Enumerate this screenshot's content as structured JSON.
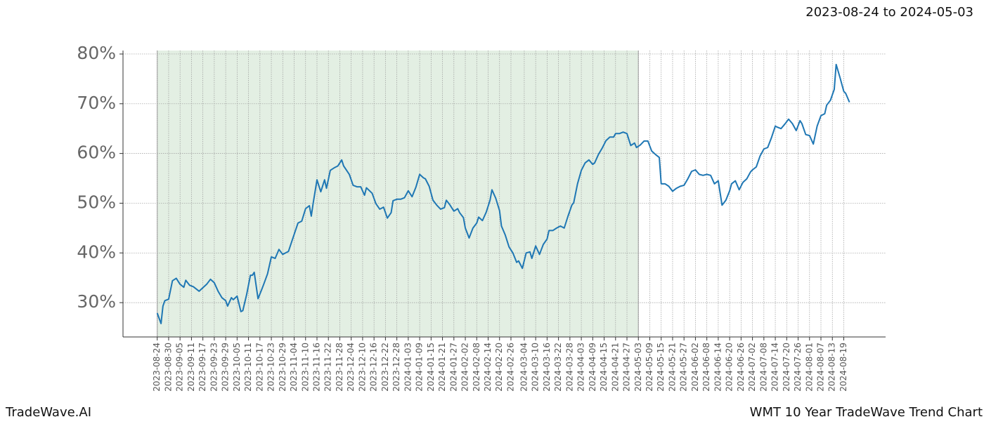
{
  "chart_data": {
    "type": "line",
    "title": "WMT 10 Year TradeWave Trend Chart",
    "date_range": "2023-08-24 to 2024-05-03",
    "brand": "TradeWave.AI",
    "color": "#1f77b4",
    "shade_color": "#e3efe3",
    "shaded_span": [
      "2023-08-24",
      "2024-05-03"
    ],
    "grid": true,
    "xlim": [
      "2023-08-06",
      "2024-09-10"
    ],
    "ylim": [
      23.1,
      80.7
    ],
    "yticks": [
      {
        "value": 30,
        "label": "30%"
      },
      {
        "value": 40,
        "label": "40%"
      },
      {
        "value": 50,
        "label": "50%"
      },
      {
        "value": 60,
        "label": "60%"
      },
      {
        "value": 70,
        "label": "70%"
      },
      {
        "value": 80,
        "label": "80%"
      }
    ],
    "xticks": [
      "2023-08-24",
      "2023-08-30",
      "2023-09-05",
      "2023-09-11",
      "2023-09-17",
      "2023-09-23",
      "2023-09-29",
      "2023-10-05",
      "2023-10-11",
      "2023-10-17",
      "2023-10-23",
      "2023-10-29",
      "2023-11-04",
      "2023-11-10",
      "2023-11-16",
      "2023-11-22",
      "2023-11-28",
      "2023-12-04",
      "2023-12-10",
      "2023-12-16",
      "2023-12-22",
      "2023-12-28",
      "2024-01-03",
      "2024-01-09",
      "2024-01-15",
      "2024-01-21",
      "2024-01-27",
      "2024-02-02",
      "2024-02-08",
      "2024-02-14",
      "2024-02-20",
      "2024-02-26",
      "2024-03-04",
      "2024-03-10",
      "2024-03-16",
      "2024-03-22",
      "2024-03-28",
      "2024-04-03",
      "2024-04-09",
      "2024-04-15",
      "2024-04-21",
      "2024-04-27",
      "2024-05-03",
      "2024-05-09",
      "2024-05-15",
      "2024-05-21",
      "2024-05-27",
      "2024-06-02",
      "2024-06-08",
      "2024-06-14",
      "2024-06-20",
      "2024-06-26",
      "2024-07-02",
      "2024-07-08",
      "2024-07-14",
      "2024-07-20",
      "2024-07-26",
      "2024-08-01",
      "2024-08-07",
      "2024-08-13",
      "2024-08-19"
    ],
    "x": [
      "2023-08-24",
      "2023-08-26",
      "2023-08-27",
      "2023-08-28",
      "2023-08-30",
      "2023-09-01",
      "2023-09-03",
      "2023-09-05",
      "2023-09-07",
      "2023-09-08",
      "2023-09-10",
      "2023-09-12",
      "2023-09-15",
      "2023-09-17",
      "2023-09-19",
      "2023-09-21",
      "2023-09-23",
      "2023-09-25",
      "2023-09-27",
      "2023-09-29",
      "2023-09-30",
      "2023-10-02",
      "2023-10-03",
      "2023-10-05",
      "2023-10-07",
      "2023-10-08",
      "2023-10-10",
      "2023-10-12",
      "2023-10-13",
      "2023-10-14",
      "2023-10-16",
      "2023-10-18",
      "2023-10-19",
      "2023-10-21",
      "2023-10-23",
      "2023-10-25",
      "2023-10-27",
      "2023-10-29",
      "2023-11-01",
      "2023-11-03",
      "2023-11-06",
      "2023-11-08",
      "2023-11-10",
      "2023-11-12",
      "2023-11-13",
      "2023-11-14",
      "2023-11-16",
      "2023-11-18",
      "2023-11-20",
      "2023-11-21",
      "2023-11-23",
      "2023-11-25",
      "2023-11-27",
      "2023-11-29",
      "2023-11-30",
      "2023-12-03",
      "2023-12-05",
      "2023-12-07",
      "2023-12-09",
      "2023-12-11",
      "2023-12-12",
      "2023-12-15",
      "2023-12-17",
      "2023-12-19",
      "2023-12-21",
      "2023-12-23",
      "2023-12-25",
      "2023-12-26",
      "2023-12-28",
      "2023-12-30",
      "2024-01-01",
      "2024-01-03",
      "2024-01-05",
      "2024-01-07",
      "2024-01-09",
      "2024-01-11",
      "2024-01-12",
      "2024-01-14",
      "2024-01-16",
      "2024-01-18",
      "2024-01-20",
      "2024-01-22",
      "2024-01-23",
      "2024-01-25",
      "2024-01-27",
      "2024-01-29",
      "2024-01-30",
      "2024-02-01",
      "2024-02-02",
      "2024-02-04",
      "2024-02-06",
      "2024-02-08",
      "2024-02-09",
      "2024-02-11",
      "2024-02-13",
      "2024-02-15",
      "2024-02-16",
      "2024-02-18",
      "2024-02-20",
      "2024-02-21",
      "2024-02-23",
      "2024-02-25",
      "2024-02-27",
      "2024-02-29",
      "2024-03-01",
      "2024-03-03",
      "2024-03-05",
      "2024-03-07",
      "2024-03-08",
      "2024-03-10",
      "2024-03-12",
      "2024-03-14",
      "2024-03-16",
      "2024-03-17",
      "2024-03-19",
      "2024-03-21",
      "2024-03-23",
      "2024-03-25",
      "2024-03-27",
      "2024-03-29",
      "2024-03-30",
      "2024-04-01",
      "2024-04-03",
      "2024-04-05",
      "2024-04-07",
      "2024-04-09",
      "2024-04-10",
      "2024-04-12",
      "2024-04-14",
      "2024-04-16",
      "2024-04-18",
      "2024-04-20",
      "2024-04-21",
      "2024-04-23",
      "2024-04-25",
      "2024-04-27",
      "2024-04-29",
      "2024-05-01",
      "2024-05-02",
      "2024-05-04",
      "2024-05-06",
      "2024-05-08",
      "2024-05-10",
      "2024-05-12",
      "2024-05-14",
      "2024-05-15",
      "2024-05-17",
      "2024-05-19",
      "2024-05-21",
      "2024-05-23",
      "2024-05-25",
      "2024-05-27",
      "2024-05-29",
      "2024-05-31",
      "2024-06-02",
      "2024-06-04",
      "2024-06-06",
      "2024-06-08",
      "2024-06-10",
      "2024-06-12",
      "2024-06-14",
      "2024-06-16",
      "2024-06-18",
      "2024-06-20",
      "2024-06-21",
      "2024-06-23",
      "2024-06-25",
      "2024-06-27",
      "2024-06-29",
      "2024-07-01",
      "2024-07-02",
      "2024-07-04",
      "2024-07-06",
      "2024-07-08",
      "2024-07-10",
      "2024-07-12",
      "2024-07-14",
      "2024-07-15",
      "2024-07-17",
      "2024-07-19",
      "2024-07-21",
      "2024-07-23",
      "2024-07-25",
      "2024-07-27",
      "2024-07-28",
      "2024-07-30",
      "2024-08-01",
      "2024-08-03",
      "2024-08-05",
      "2024-08-07",
      "2024-08-09",
      "2024-08-10",
      "2024-08-12",
      "2024-08-14",
      "2024-08-15",
      "2024-08-17",
      "2024-08-19",
      "2024-08-20",
      "2024-08-22"
    ],
    "values": [
      27.9,
      25.8,
      29.3,
      30.4,
      30.7,
      34.4,
      34.9,
      33.7,
      33.1,
      34.5,
      33.5,
      33.2,
      32.3,
      33.0,
      33.7,
      34.7,
      34.0,
      32.3,
      31.0,
      30.4,
      29.3,
      31.0,
      30.6,
      31.3,
      28.2,
      28.4,
      31.6,
      35.5,
      35.5,
      36.1,
      30.8,
      32.7,
      33.7,
      35.8,
      39.2,
      38.9,
      40.7,
      39.7,
      40.3,
      42.6,
      46.0,
      46.4,
      48.9,
      49.5,
      47.4,
      50.0,
      54.7,
      52.3,
      54.7,
      53.0,
      56.6,
      57.1,
      57.5,
      58.7,
      57.5,
      55.8,
      53.6,
      53.3,
      53.3,
      51.6,
      53.1,
      52.0,
      49.9,
      48.8,
      49.2,
      47.0,
      48.1,
      50.5,
      50.8,
      50.8,
      51.1,
      52.5,
      51.3,
      53.2,
      55.8,
      55.1,
      54.9,
      53.4,
      50.6,
      49.6,
      48.8,
      49.1,
      50.6,
      49.6,
      48.4,
      48.9,
      48.1,
      47.1,
      45.0,
      43.0,
      45.0,
      46.0,
      47.2,
      46.5,
      48.2,
      50.6,
      52.7,
      51.0,
      48.5,
      45.4,
      43.6,
      41.2,
      40.0,
      38.1,
      38.4,
      36.9,
      40.0,
      40.2,
      38.9,
      41.4,
      39.7,
      41.7,
      42.8,
      44.5,
      44.5,
      45.0,
      45.4,
      45.0,
      47.4,
      49.6,
      50.1,
      53.9,
      56.6,
      58.1,
      58.7,
      57.8,
      58.1,
      59.8,
      61.1,
      62.6,
      63.3,
      63.3,
      64.0,
      64.0,
      64.3,
      64.0,
      61.6,
      62.1,
      61.2,
      61.7,
      62.5,
      62.5,
      60.5,
      59.8,
      59.2,
      53.9,
      53.9,
      53.4,
      52.4,
      53.0,
      53.4,
      53.6,
      54.9,
      56.4,
      56.7,
      55.8,
      55.6,
      55.8,
      55.6,
      53.9,
      54.5,
      49.6,
      50.6,
      52.5,
      53.9,
      54.5,
      52.7,
      54.2,
      54.9,
      56.3,
      56.7,
      57.3,
      59.5,
      60.9,
      61.2,
      63.2,
      65.5,
      65.3,
      65.0,
      65.9,
      66.9,
      66.0,
      64.6,
      66.6,
      66.0,
      63.8,
      63.6,
      61.9,
      65.5,
      67.6,
      68.0,
      69.7,
      70.7,
      72.9,
      77.9,
      75.3,
      72.5,
      72.1,
      70.3
    ]
  }
}
